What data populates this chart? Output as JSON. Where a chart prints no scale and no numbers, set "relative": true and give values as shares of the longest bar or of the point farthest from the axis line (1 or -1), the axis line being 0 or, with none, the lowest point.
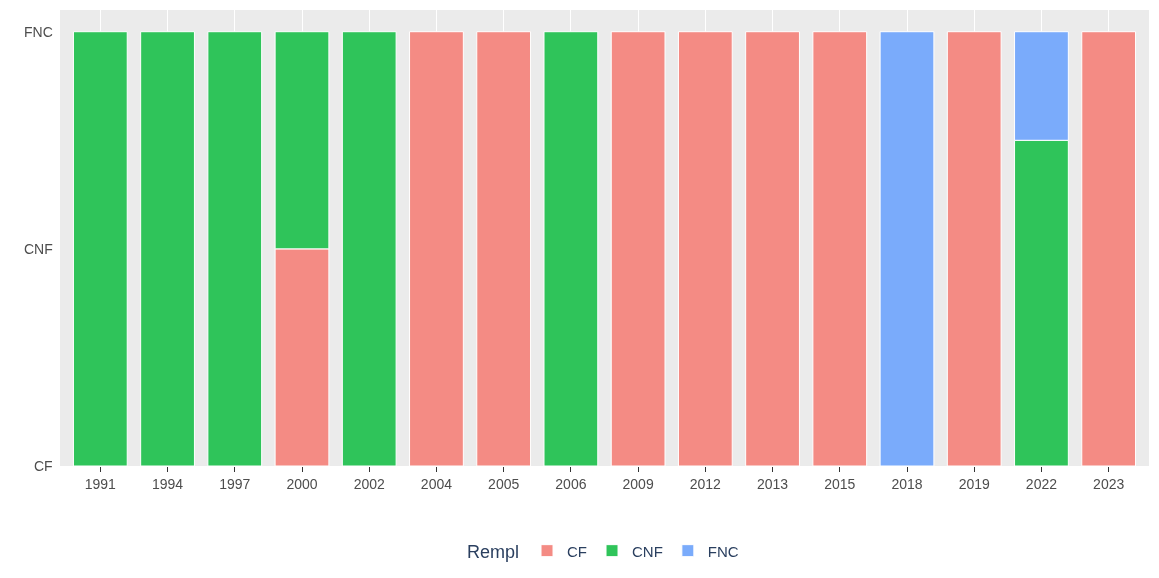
{
  "chart_data": {
    "type": "bar",
    "stacked": true,
    "relative": true,
    "categories": [
      "1991",
      "1994",
      "1997",
      "2000",
      "2002",
      "2004",
      "2005",
      "2006",
      "2009",
      "2012",
      "2013",
      "2015",
      "2018",
      "2019",
      "2022",
      "2023"
    ],
    "series": [
      {
        "name": "CF",
        "color": "#f48b84",
        "values": [
          null,
          null,
          null,
          0.5,
          null,
          1,
          1,
          null,
          1,
          1,
          1,
          1,
          null,
          1,
          null,
          1
        ]
      },
      {
        "name": "CNF",
        "color": "#2fc45a",
        "values": [
          1,
          1,
          1,
          0.5,
          1,
          null,
          null,
          1,
          null,
          null,
          null,
          null,
          null,
          null,
          0.75,
          null
        ]
      },
      {
        "name": "FNC",
        "color": "#7aabfb",
        "values": [
          null,
          null,
          null,
          null,
          null,
          null,
          null,
          null,
          null,
          null,
          null,
          null,
          1,
          null,
          0.25,
          null
        ]
      }
    ],
    "annotations": [
      "CF",
      "CNF",
      "FNC"
    ],
    "grid": "x",
    "legend": "bottom",
    "legend_title": "Rempl"
  }
}
